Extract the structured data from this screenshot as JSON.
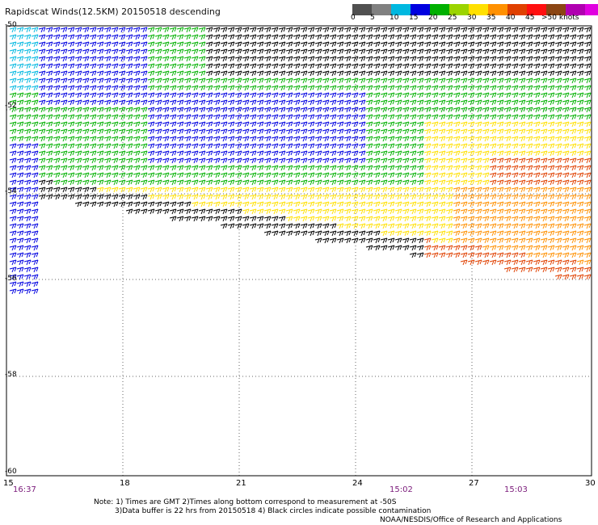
{
  "title": "Rapidscat Winds(12.5KM) 20150518 descending",
  "legend": {
    "colors": [
      "#505050",
      "#808080",
      "#00b8e0",
      "#0000e0",
      "#00b000",
      "#9bd400",
      "#ffe000",
      "#ff9000",
      "#e04000",
      "#ff1010",
      "#8b4513",
      "#b000b0",
      "#e000e0",
      "#6000a0"
    ],
    "labels": [
      "0",
      "5",
      "10",
      "15",
      "20",
      "25",
      "30",
      "35",
      "40",
      "45",
      ">50 knots"
    ]
  },
  "axes": {
    "lat_labels": [
      "-50",
      "-52",
      "-54",
      "-56",
      "-58",
      "-60"
    ],
    "lon_labels": [
      "15",
      "18",
      "21",
      "24",
      "27",
      "30"
    ]
  },
  "time_labels": [
    "16:37",
    "15:02",
    "15:03"
  ],
  "notes": {
    "line1": "Note: 1) Times are GMT 2)Times along bottom correspond to measurement at -50S",
    "line2": "3)Data buffer is 22 hrs from 20150518 4) Black circles indicate possible contamination",
    "line3": "NOAA/NESDIS/Office of Research and Applications"
  }
}
